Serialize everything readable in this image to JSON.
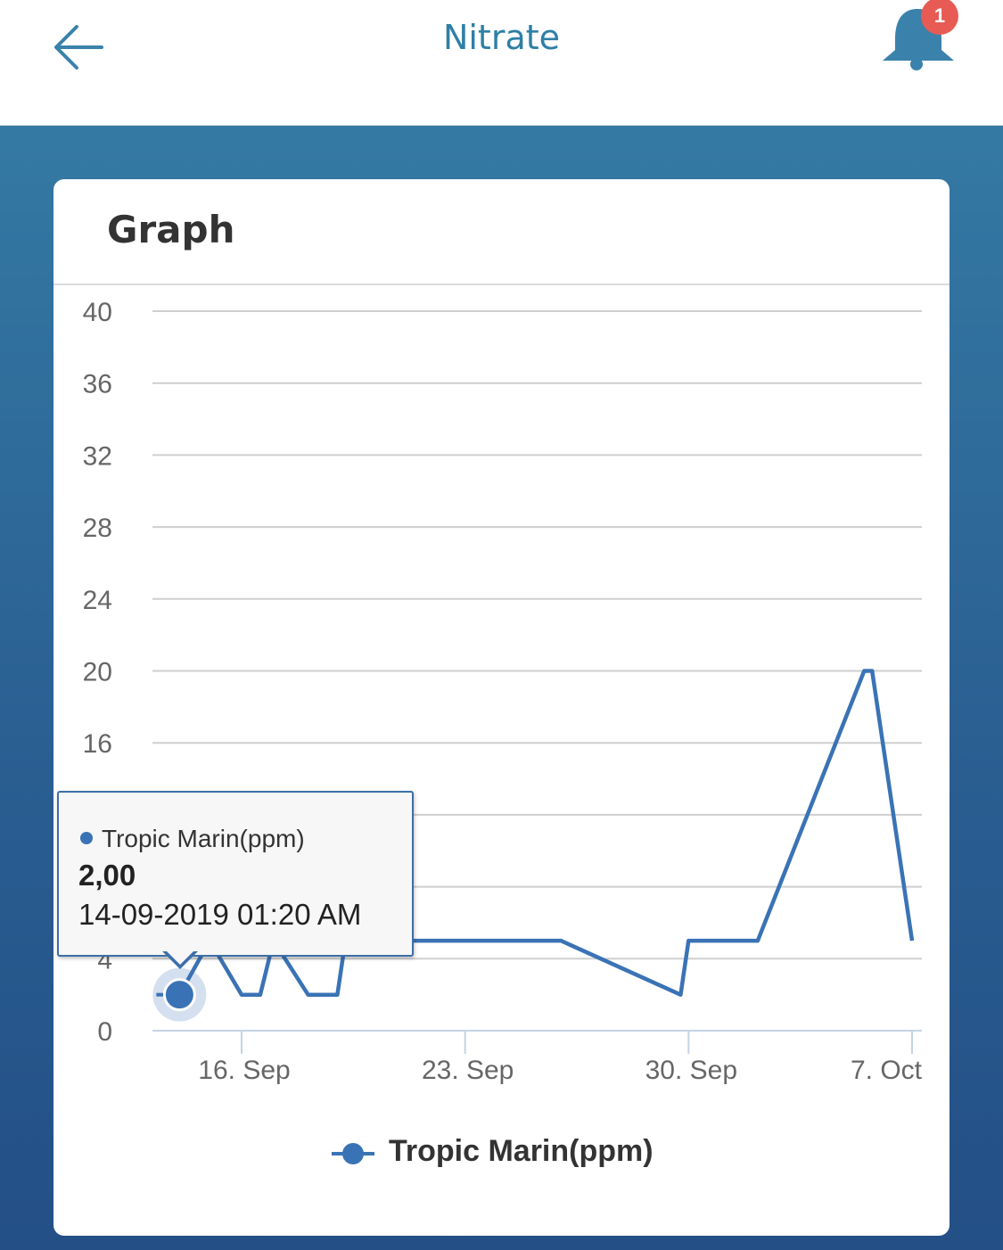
{
  "header": {
    "title": "Nitrate",
    "notification_count": "1"
  },
  "card": {
    "title": "Graph"
  },
  "tooltip": {
    "series": "Tropic Marin(ppm)",
    "value": "2,00",
    "timestamp": "14-09-2019 01:20 AM"
  },
  "legend": {
    "label": "Tropic Marin(ppm)"
  },
  "colors": {
    "accent": "#2f7fa6",
    "series": "#3a73b5",
    "badge": "#e85b55"
  },
  "chart_data": {
    "type": "line",
    "ylim": [
      0,
      40
    ],
    "yticks": [
      0,
      4,
      8,
      12,
      16,
      20,
      24,
      28,
      32,
      36,
      40
    ],
    "xticks": [
      {
        "date": "2019-09-16",
        "label": "16. Sep"
      },
      {
        "date": "2019-09-23",
        "label": "23. Sep"
      },
      {
        "date": "2019-09-30",
        "label": "30. Sep"
      },
      {
        "date": "2019-10-07",
        "label": "7. Oct"
      }
    ],
    "grid": true,
    "legend_position": "bottom",
    "series": [
      {
        "name": "Tropic Marin(ppm)",
        "points": [
          {
            "x": "2019-09-14T01:20",
            "y": 2
          },
          {
            "x": "2019-09-15T00:00",
            "y": 5
          },
          {
            "x": "2019-09-16T00:00",
            "y": 2
          },
          {
            "x": "2019-09-16T14:00",
            "y": 2
          },
          {
            "x": "2019-09-17T00:00",
            "y": 5
          },
          {
            "x": "2019-09-18T02:00",
            "y": 2
          },
          {
            "x": "2019-09-19T00:00",
            "y": 2
          },
          {
            "x": "2019-09-19T06:00",
            "y": 5
          },
          {
            "x": "2019-09-26T00:00",
            "y": 5
          },
          {
            "x": "2019-09-29T18:00",
            "y": 2
          },
          {
            "x": "2019-09-30T00:00",
            "y": 5
          },
          {
            "x": "2019-10-02T04:00",
            "y": 5
          },
          {
            "x": "2019-10-05T12:00",
            "y": 20
          },
          {
            "x": "2019-10-05T18:00",
            "y": 20
          },
          {
            "x": "2019-10-07T00:00",
            "y": 5
          }
        ]
      }
    ]
  }
}
